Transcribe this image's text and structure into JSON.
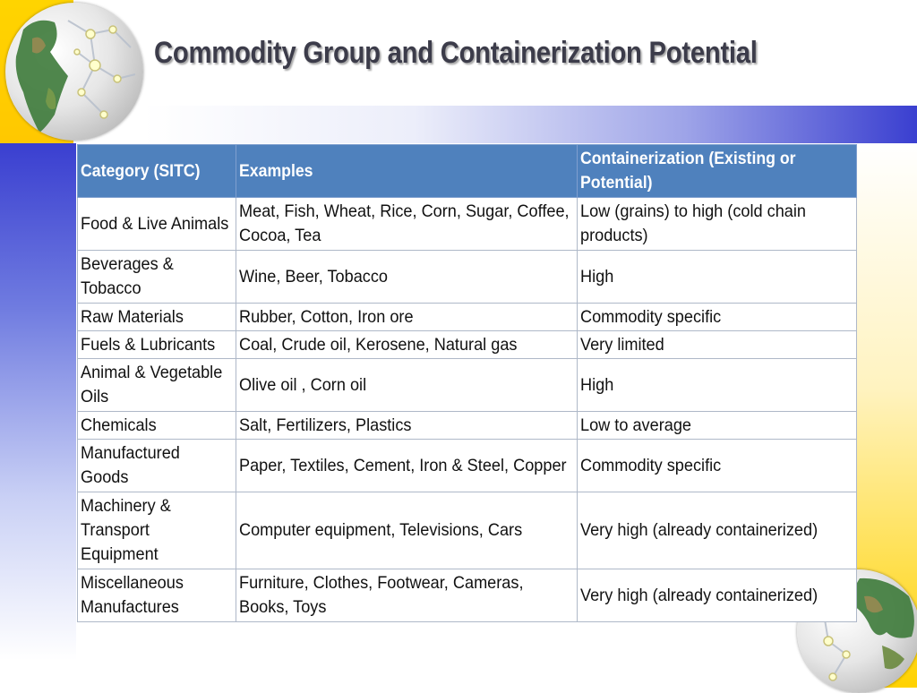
{
  "slide": {
    "title": "Commodity Group and Containerization Potential"
  },
  "colors": {
    "header_bg": "#4f81bd",
    "accent_blue": "#3a3fd0",
    "accent_yellow": "#ffd400"
  },
  "table": {
    "headers": [
      "Category (SITC)",
      "Examples",
      "Containerization (Existing or Potential)"
    ],
    "rows": [
      [
        "Food & Live Animals",
        "Meat, Fish, Wheat, Rice, Corn, Sugar, Coffee, Cocoa, Tea",
        "Low (grains) to high (cold chain products)"
      ],
      [
        "Beverages & Tobacco",
        "Wine, Beer, Tobacco",
        "High"
      ],
      [
        "Raw Materials",
        "Rubber, Cotton, Iron ore",
        "Commodity specific"
      ],
      [
        "Fuels & Lubricants",
        "Coal, Crude oil, Kerosene, Natural gas",
        "Very limited"
      ],
      [
        "Animal & Vegetable Oils",
        "Olive oil , Corn oil",
        "High"
      ],
      [
        "Chemicals",
        "Salt, Fertilizers, Plastics",
        "Low to average"
      ],
      [
        "Manufactured Goods",
        "Paper, Textiles, Cement, Iron & Steel, Copper",
        "Commodity specific"
      ],
      [
        "Machinery & Transport Equipment",
        "Computer equipment, Televisions, Cars",
        "Very high (already containerized)"
      ],
      [
        "Miscellaneous Manufactures",
        "Furniture, Clothes, Footwear, Cameras, Books, Toys",
        "Very high (already containerized)"
      ]
    ]
  },
  "icons": {
    "top_left": "globe-americas-icon",
    "bottom_right": "globe-asia-icon"
  }
}
